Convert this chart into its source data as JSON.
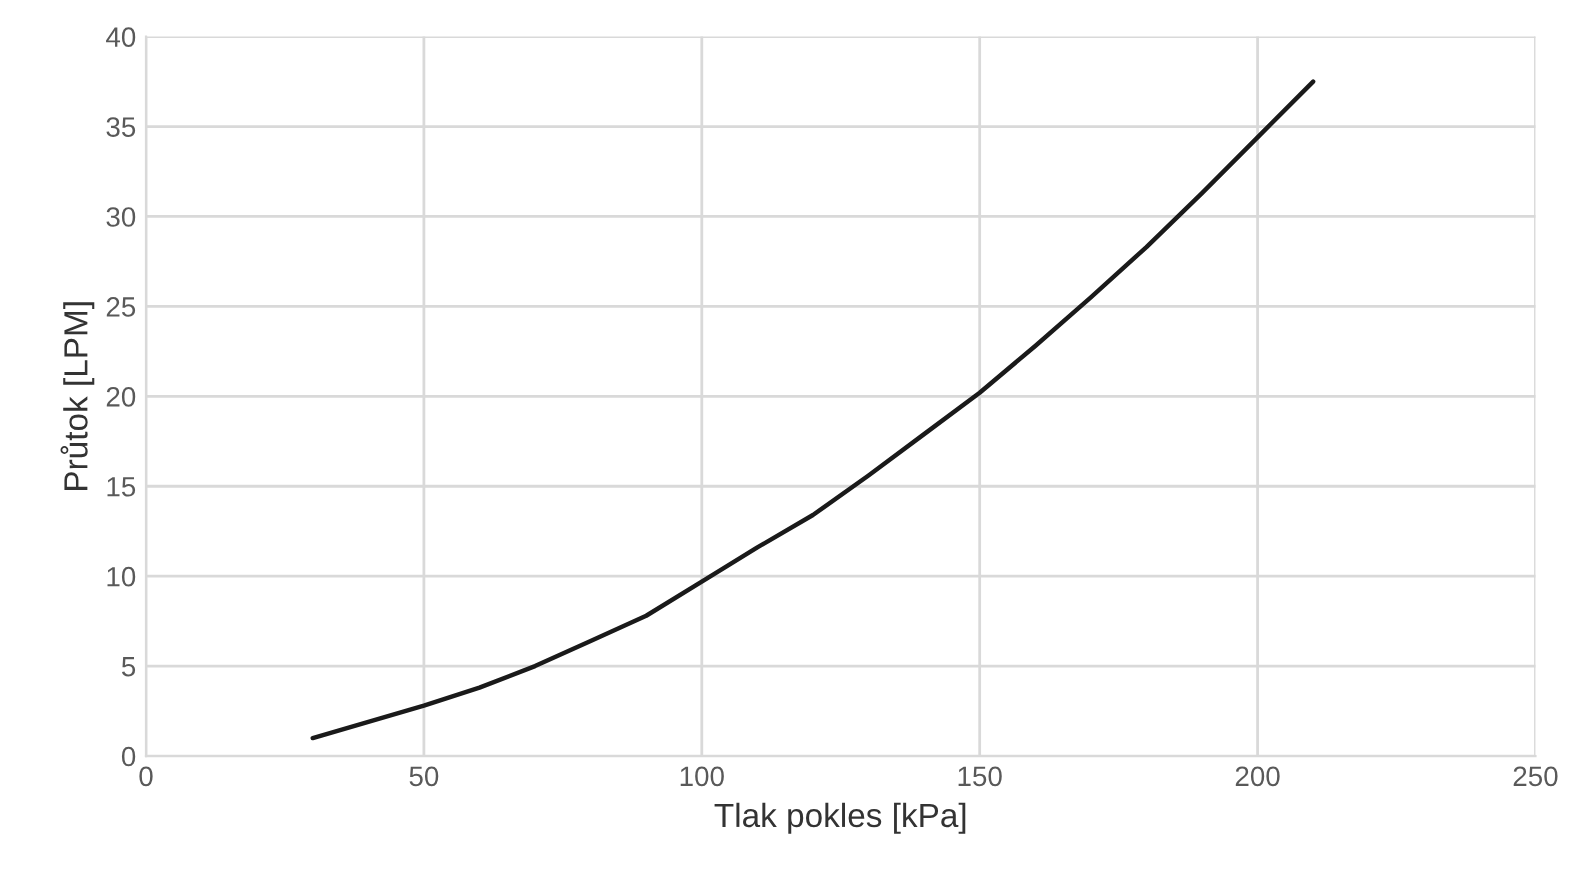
{
  "chart_data": {
    "type": "line",
    "xlabel": "Tlak pokles [kPa]",
    "ylabel": "Průtok [LPM]",
    "x": [
      30,
      50,
      60,
      70,
      80,
      90,
      100,
      110,
      120,
      130,
      140,
      150,
      160,
      170,
      180,
      190,
      200,
      210
    ],
    "series": [
      {
        "color": "#1a1a1a",
        "values": [
          1,
          2.8,
          3.8,
          5,
          6.4,
          7.8,
          9.7,
          11.6,
          13.4,
          15.6,
          17.9,
          20.2,
          22.8,
          25.5,
          28.3,
          31.3,
          34.4,
          37.5
        ]
      }
    ],
    "xlim": [
      0,
      250
    ],
    "xticks": [
      0,
      50,
      100,
      150,
      200,
      250
    ],
    "ylim": [
      0,
      40
    ],
    "yticks": [
      0,
      5,
      10,
      15,
      20,
      25,
      30,
      35,
      40
    ],
    "grid": true,
    "marker": "none",
    "line_style": "solid"
  }
}
